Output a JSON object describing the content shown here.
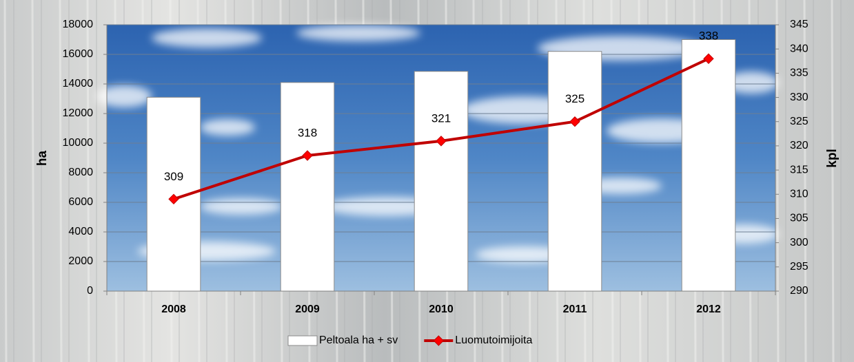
{
  "chart_data": {
    "type": "bar",
    "categories": [
      "2008",
      "2009",
      "2010",
      "2011",
      "2012"
    ],
    "series": [
      {
        "name": "Peltoala ha + sv",
        "type": "bar",
        "color": "#ffffff",
        "values": [
          13100,
          14100,
          14850,
          16200,
          17000
        ]
      },
      {
        "name": "Luomutoimijoita",
        "type": "line",
        "axis": "y2",
        "color": "#c00000",
        "marker_color": "#ff0000",
        "values": [
          309,
          318,
          321,
          325,
          338
        ]
      }
    ],
    "ylabel": "ha",
    "y2label": "kpl",
    "ylim": [
      0,
      18000
    ],
    "yticks": [
      0,
      2000,
      4000,
      6000,
      8000,
      10000,
      12000,
      14000,
      16000,
      18000
    ],
    "y2lim": [
      290,
      345
    ],
    "y2ticks": [
      290,
      295,
      300,
      305,
      310,
      315,
      320,
      325,
      330,
      335,
      340,
      345
    ],
    "grid": true,
    "legend": "bottom"
  }
}
